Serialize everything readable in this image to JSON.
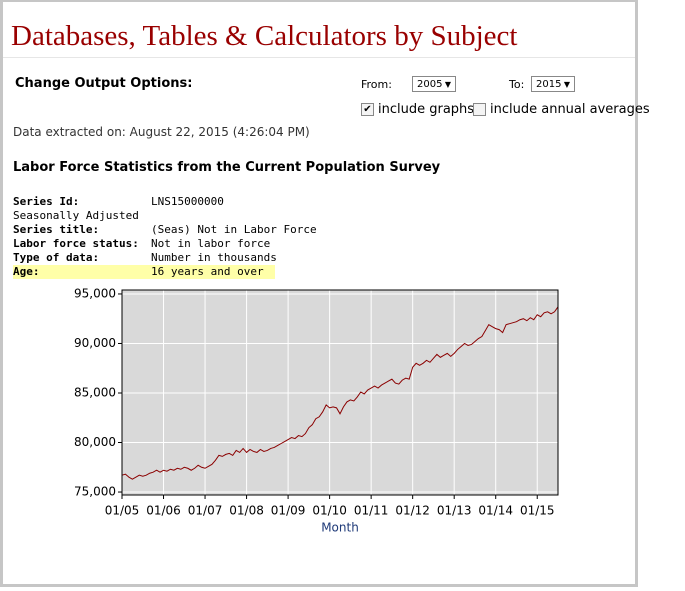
{
  "header": {
    "title": "Databases, Tables & Calculators by Subject"
  },
  "options": {
    "label": "Change Output Options:",
    "from_label": "From:",
    "from_value": "2005",
    "to_label": "To:",
    "to_value": "2015",
    "include_graphs": "include graphs",
    "include_annual": "include annual averages"
  },
  "extracted": "Data extracted on: August 22, 2015 (4:26:04 PM)",
  "series_info": {
    "heading": "Labor Force Statistics from the Current Population Survey",
    "rows": [
      [
        "Series Id:",
        "LNS15000000"
      ],
      [
        "Seasonally Adjusted"
      ],
      [
        "Series title:",
        "(Seas) Not in Labor Force"
      ],
      [
        "Labor force status:",
        "Not in labor force"
      ],
      [
        "Type of data:",
        "Number in thousands"
      ],
      [
        "Age:",
        "16 years and over"
      ]
    ]
  },
  "chart_data": {
    "type": "line",
    "xlabel": "Month",
    "color": "#8b0000",
    "grid": true,
    "ylim": [
      74700,
      95400
    ],
    "yticks": [
      {
        "value": 75000,
        "label": "75,000"
      },
      {
        "value": 80000,
        "label": "80,000"
      },
      {
        "value": 85000,
        "label": "85,000"
      },
      {
        "value": 90000,
        "label": "90,000"
      },
      {
        "value": 95000,
        "label": "95,000"
      }
    ],
    "xticks": [
      "01/05",
      "01/06",
      "01/07",
      "01/08",
      "01/09",
      "01/10",
      "01/11",
      "01/12",
      "01/13",
      "01/14",
      "01/15"
    ],
    "x": [
      "01/05",
      "02/05",
      "03/05",
      "04/05",
      "05/05",
      "06/05",
      "07/05",
      "08/05",
      "09/05",
      "10/05",
      "11/05",
      "12/05",
      "01/06",
      "02/06",
      "03/06",
      "04/06",
      "05/06",
      "06/06",
      "07/06",
      "08/06",
      "09/06",
      "10/06",
      "11/06",
      "12/06",
      "01/07",
      "02/07",
      "03/07",
      "04/07",
      "05/07",
      "06/07",
      "07/07",
      "08/07",
      "09/07",
      "10/07",
      "11/07",
      "12/07",
      "01/08",
      "02/08",
      "03/08",
      "04/08",
      "05/08",
      "06/08",
      "07/08",
      "08/08",
      "09/08",
      "10/08",
      "11/08",
      "12/08",
      "01/09",
      "02/09",
      "03/09",
      "04/09",
      "05/09",
      "06/09",
      "07/09",
      "08/09",
      "09/09",
      "10/09",
      "11/09",
      "12/09",
      "01/10",
      "02/10",
      "03/10",
      "04/10",
      "05/10",
      "06/10",
      "07/10",
      "08/10",
      "09/10",
      "10/10",
      "11/10",
      "12/10",
      "01/11",
      "02/11",
      "03/11",
      "04/11",
      "05/11",
      "06/11",
      "07/11",
      "08/11",
      "09/11",
      "10/11",
      "11/11",
      "12/11",
      "01/12",
      "02/12",
      "03/12",
      "04/12",
      "05/12",
      "06/12",
      "07/12",
      "08/12",
      "09/12",
      "10/12",
      "11/12",
      "12/12",
      "01/13",
      "02/13",
      "03/13",
      "04/13",
      "05/13",
      "06/13",
      "07/13",
      "08/13",
      "09/13",
      "10/13",
      "11/13",
      "12/13",
      "01/14",
      "02/14",
      "03/14",
      "04/14",
      "05/14",
      "06/14",
      "07/14",
      "08/14",
      "09/14",
      "10/14",
      "11/14",
      "12/14",
      "01/15",
      "02/15",
      "03/15",
      "04/15",
      "05/15",
      "06/15",
      "07/15"
    ],
    "values": [
      76700,
      76800,
      76500,
      76300,
      76500,
      76700,
      76600,
      76700,
      76900,
      77000,
      77200,
      77000,
      77200,
      77100,
      77300,
      77200,
      77400,
      77300,
      77500,
      77400,
      77200,
      77400,
      77700,
      77500,
      77400,
      77600,
      77800,
      78200,
      78700,
      78600,
      78800,
      78900,
      78700,
      79200,
      79000,
      79400,
      79000,
      79300,
      79100,
      79000,
      79300,
      79100,
      79200,
      79400,
      79500,
      79700,
      79900,
      80100,
      80300,
      80500,
      80400,
      80700,
      80600,
      80900,
      81500,
      81800,
      82400,
      82600,
      83100,
      83800,
      83500,
      83600,
      83500,
      82900,
      83600,
      84100,
      84300,
      84200,
      84600,
      85100,
      84900,
      85300,
      85500,
      85700,
      85500,
      85800,
      86000,
      86200,
      86400,
      86000,
      85900,
      86300,
      86500,
      86400,
      87600,
      88000,
      87800,
      88000,
      88300,
      88100,
      88500,
      88900,
      88600,
      88800,
      89000,
      88700,
      89000,
      89400,
      89700,
      90000,
      89800,
      89900,
      90200,
      90500,
      90700,
      91300,
      91900,
      91700,
      91500,
      91400,
      91100,
      91900,
      92000,
      92100,
      92200,
      92400,
      92500,
      92300,
      92600,
      92400,
      92900,
      92700,
      93100,
      93200,
      93000,
      93200,
      93700
    ]
  }
}
